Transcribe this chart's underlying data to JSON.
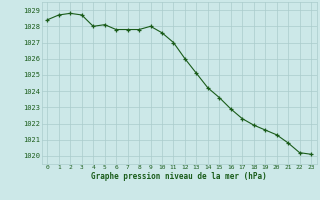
{
  "hours": [
    0,
    1,
    2,
    3,
    4,
    5,
    6,
    7,
    8,
    9,
    10,
    11,
    12,
    13,
    14,
    15,
    16,
    17,
    18,
    19,
    20,
    21,
    22,
    23
  ],
  "pressure": [
    1028.4,
    1028.7,
    1028.8,
    1028.7,
    1028.0,
    1028.1,
    1027.8,
    1027.8,
    1027.8,
    1028.0,
    1027.6,
    1027.0,
    1026.0,
    1025.1,
    1024.2,
    1023.6,
    1022.9,
    1022.3,
    1021.9,
    1021.6,
    1021.3,
    1020.8,
    1020.2,
    1020.1
  ],
  "line_color": "#1a5c1a",
  "marker_color": "#1a5c1a",
  "bg_color": "#cce8e8",
  "grid_color": "#aacccc",
  "xlabel": "Graphe pression niveau de la mer (hPa)",
  "ylim": [
    1019.5,
    1029.5
  ],
  "yticks": [
    1020,
    1021,
    1022,
    1023,
    1024,
    1025,
    1026,
    1027,
    1028,
    1029
  ],
  "xlabel_color": "#1a5c1a",
  "tick_label_color": "#1a5c1a"
}
